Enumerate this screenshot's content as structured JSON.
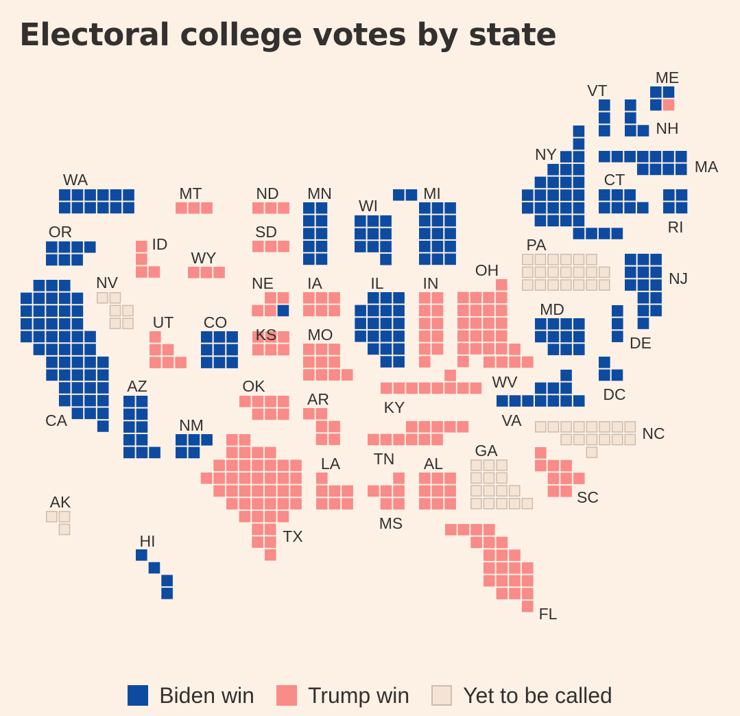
{
  "title": "Electoral college votes by state",
  "colors": {
    "biden": "#0d4ba0",
    "trump": "#f98b88",
    "pending_fill": "#f5e4d4",
    "pending_stroke": "#cbbcae",
    "background": "#fdf1e6",
    "text": "#33302e"
  },
  "legend": [
    {
      "key": "biden",
      "label": "Biden win"
    },
    {
      "key": "trump",
      "label": "Trump win"
    },
    {
      "key": "pending",
      "label": "Yet to be called"
    }
  ],
  "states": [
    {
      "abbr": "WA",
      "electoral_votes": 12,
      "result": "biden"
    },
    {
      "abbr": "OR",
      "electoral_votes": 7,
      "result": "biden"
    },
    {
      "abbr": "CA",
      "electoral_votes": 55,
      "result": "biden"
    },
    {
      "abbr": "NV",
      "electoral_votes": 6,
      "result": "pending"
    },
    {
      "abbr": "ID",
      "electoral_votes": 4,
      "result": "trump"
    },
    {
      "abbr": "MT",
      "electoral_votes": 3,
      "result": "trump"
    },
    {
      "abbr": "WY",
      "electoral_votes": 3,
      "result": "trump"
    },
    {
      "abbr": "UT",
      "electoral_votes": 6,
      "result": "trump"
    },
    {
      "abbr": "CO",
      "electoral_votes": 9,
      "result": "biden"
    },
    {
      "abbr": "AZ",
      "electoral_votes": 11,
      "result": "biden"
    },
    {
      "abbr": "NM",
      "electoral_votes": 5,
      "result": "biden"
    },
    {
      "abbr": "ND",
      "electoral_votes": 3,
      "result": "trump"
    },
    {
      "abbr": "SD",
      "electoral_votes": 3,
      "result": "trump"
    },
    {
      "abbr": "NE",
      "electoral_votes": 5,
      "result": "trump",
      "split": {
        "biden": 1
      }
    },
    {
      "abbr": "KS",
      "electoral_votes": 6,
      "result": "trump"
    },
    {
      "abbr": "OK",
      "electoral_votes": 7,
      "result": "trump"
    },
    {
      "abbr": "TX",
      "electoral_votes": 38,
      "result": "trump"
    },
    {
      "abbr": "MN",
      "electoral_votes": 10,
      "result": "biden"
    },
    {
      "abbr": "IA",
      "electoral_votes": 6,
      "result": "trump"
    },
    {
      "abbr": "MO",
      "electoral_votes": 10,
      "result": "trump"
    },
    {
      "abbr": "AR",
      "electoral_votes": 6,
      "result": "trump"
    },
    {
      "abbr": "LA",
      "electoral_votes": 8,
      "result": "trump"
    },
    {
      "abbr": "WI",
      "electoral_votes": 10,
      "result": "biden"
    },
    {
      "abbr": "IL",
      "electoral_votes": 20,
      "result": "biden"
    },
    {
      "abbr": "MI",
      "electoral_votes": 16,
      "result": "biden"
    },
    {
      "abbr": "IN",
      "electoral_votes": 11,
      "result": "trump"
    },
    {
      "abbr": "OH",
      "electoral_votes": 18,
      "result": "trump"
    },
    {
      "abbr": "KY",
      "electoral_votes": 8,
      "result": "trump"
    },
    {
      "abbr": "TN",
      "electoral_votes": 11,
      "result": "trump"
    },
    {
      "abbr": "MS",
      "electoral_votes": 6,
      "result": "trump"
    },
    {
      "abbr": "AL",
      "electoral_votes": 9,
      "result": "trump"
    },
    {
      "abbr": "GA",
      "electoral_votes": 16,
      "result": "pending"
    },
    {
      "abbr": "FL",
      "electoral_votes": 29,
      "result": "trump"
    },
    {
      "abbr": "SC",
      "electoral_votes": 9,
      "result": "trump"
    },
    {
      "abbr": "NC",
      "electoral_votes": 15,
      "result": "pending"
    },
    {
      "abbr": "VA",
      "electoral_votes": 13,
      "result": "biden"
    },
    {
      "abbr": "WV",
      "electoral_votes": 5,
      "result": "trump"
    },
    {
      "abbr": "PA",
      "electoral_votes": 20,
      "result": "pending"
    },
    {
      "abbr": "MD",
      "electoral_votes": 10,
      "result": "biden"
    },
    {
      "abbr": "DE",
      "electoral_votes": 3,
      "result": "biden"
    },
    {
      "abbr": "DC",
      "electoral_votes": 3,
      "result": "biden"
    },
    {
      "abbr": "NJ",
      "electoral_votes": 14,
      "result": "biden"
    },
    {
      "abbr": "NY",
      "electoral_votes": 29,
      "result": "biden"
    },
    {
      "abbr": "CT",
      "electoral_votes": 7,
      "result": "biden"
    },
    {
      "abbr": "RI",
      "electoral_votes": 4,
      "result": "biden"
    },
    {
      "abbr": "MA",
      "electoral_votes": 11,
      "result": "biden"
    },
    {
      "abbr": "VT",
      "electoral_votes": 3,
      "result": "biden"
    },
    {
      "abbr": "NH",
      "electoral_votes": 4,
      "result": "biden"
    },
    {
      "abbr": "ME",
      "electoral_votes": 4,
      "result": "biden",
      "split": {
        "trump": 1
      }
    },
    {
      "abbr": "AK",
      "electoral_votes": 3,
      "result": "pending"
    },
    {
      "abbr": "HI",
      "electoral_votes": 4,
      "result": "biden"
    }
  ]
}
